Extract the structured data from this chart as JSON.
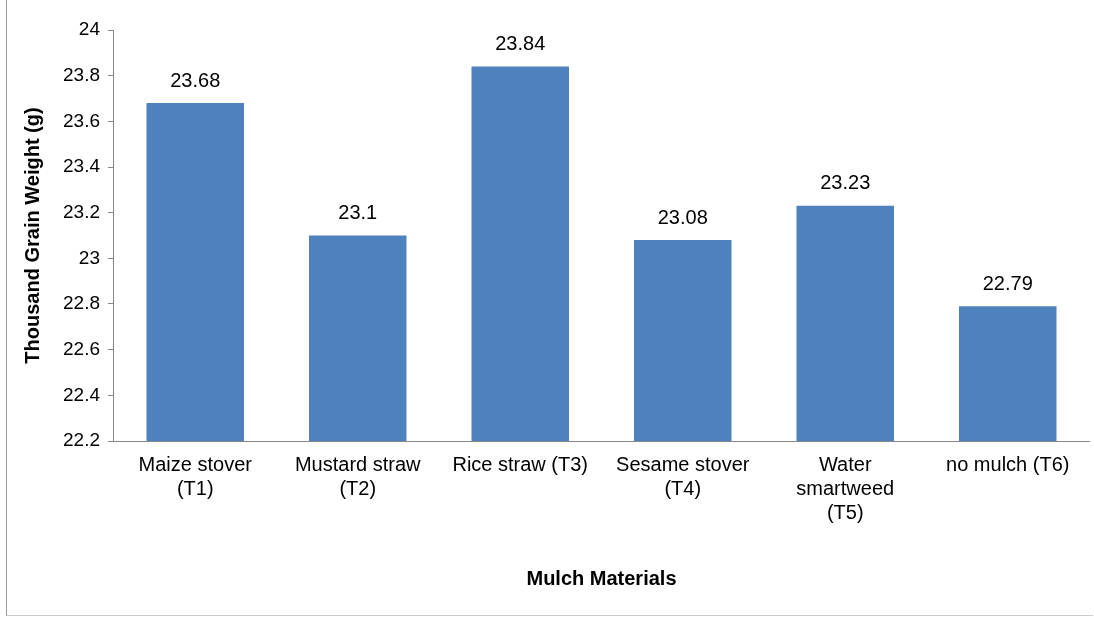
{
  "chart_data": {
    "type": "bar",
    "xlabel": "Mulch Materials",
    "ylabel": "Thousand Grain Weight (g)",
    "categories": [
      "Maize stover (T1)",
      "Mustard straw (T2)",
      "Rice straw (T3)",
      "Sesame stover (T4)",
      "Water smartweed (T5)",
      "no mulch (T6)"
    ],
    "values": [
      23.68,
      23.1,
      23.84,
      23.08,
      23.23,
      22.79
    ],
    "color": "#4f81bd",
    "ylim": [
      22.2,
      24
    ],
    "yticks": [
      {
        "value": 22.2,
        "label": "22.2"
      },
      {
        "value": 22.4,
        "label": "22.4"
      },
      {
        "value": 22.6,
        "label": "22.6"
      },
      {
        "value": 22.8,
        "label": "22.8"
      },
      {
        "value": 23,
        "label": "23"
      },
      {
        "value": 23.2,
        "label": "23.2"
      },
      {
        "value": 23.4,
        "label": "23.4"
      },
      {
        "value": 23.6,
        "label": "23.6"
      },
      {
        "value": 23.8,
        "label": "23.8"
      },
      {
        "value": 24,
        "label": "24"
      }
    ],
    "data_labels": true,
    "grid": false,
    "legend": false
  }
}
